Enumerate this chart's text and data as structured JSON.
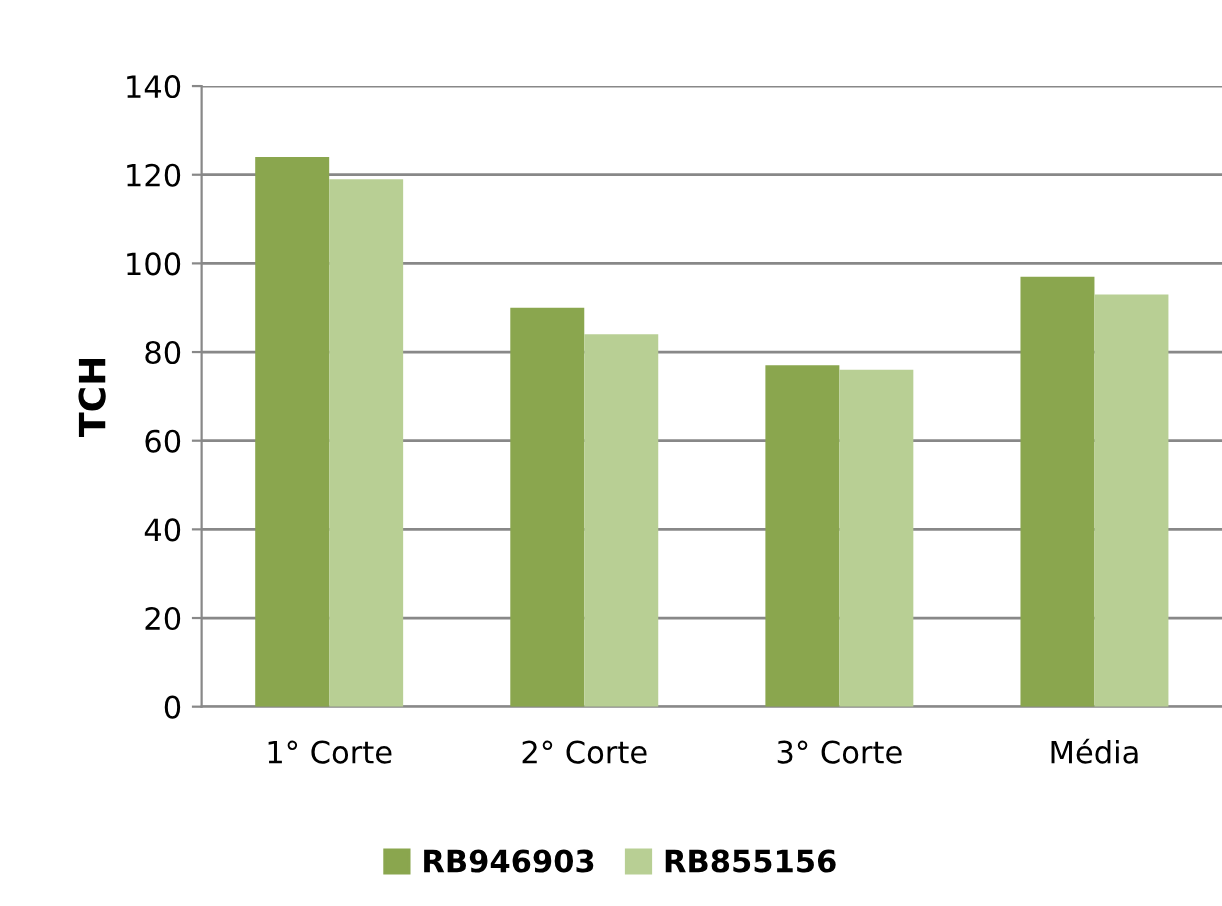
{
  "chart_data": {
    "type": "bar",
    "ylabel": "TCH",
    "categories": [
      "1° Corte",
      "2° Corte",
      "3° Corte",
      "Média"
    ],
    "series": [
      {
        "name": "RB946903",
        "color": "#8aa64e",
        "values": [
          124,
          90,
          77,
          97
        ]
      },
      {
        "name": "RB855156",
        "color": "#b8cf94",
        "values": [
          119,
          84,
          76,
          93
        ]
      }
    ],
    "ylim": [
      0,
      140
    ],
    "yticks": [
      0,
      20,
      40,
      60,
      80,
      100,
      120,
      140
    ],
    "grid": "y",
    "legend": "bottom"
  }
}
